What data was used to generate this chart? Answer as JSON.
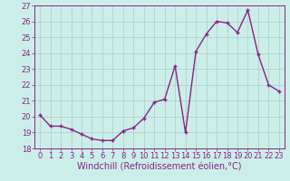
{
  "x": [
    0,
    1,
    2,
    3,
    4,
    5,
    6,
    7,
    8,
    9,
    10,
    11,
    12,
    13,
    14,
    15,
    16,
    17,
    18,
    19,
    20,
    21,
    22,
    23
  ],
  "y": [
    20.1,
    19.4,
    19.4,
    19.2,
    18.9,
    18.6,
    18.5,
    18.5,
    19.1,
    19.3,
    19.9,
    20.9,
    21.1,
    23.2,
    19.0,
    24.1,
    25.2,
    26.0,
    25.9,
    25.3,
    26.7,
    23.9,
    22.0,
    21.6
  ],
  "line_color": "#882288",
  "marker": "+",
  "marker_color": "#882288",
  "bg_color": "#cceee8",
  "grid_color": "#aacccc",
  "xlabel": "Windchill (Refroidissement éolien,°C)",
  "ylim": [
    18,
    27
  ],
  "xlim": [
    -0.5,
    23.5
  ],
  "yticks": [
    18,
    19,
    20,
    21,
    22,
    23,
    24,
    25,
    26,
    27
  ],
  "xticks": [
    0,
    1,
    2,
    3,
    4,
    5,
    6,
    7,
    8,
    9,
    10,
    11,
    12,
    13,
    14,
    15,
    16,
    17,
    18,
    19,
    20,
    21,
    22,
    23
  ],
  "tick_color": "#882288",
  "label_color": "#882288",
  "axes_color": "#882288",
  "font_size": 6.0,
  "xlabel_fontsize": 7.0,
  "linewidth": 1.0,
  "markersize": 3.5
}
